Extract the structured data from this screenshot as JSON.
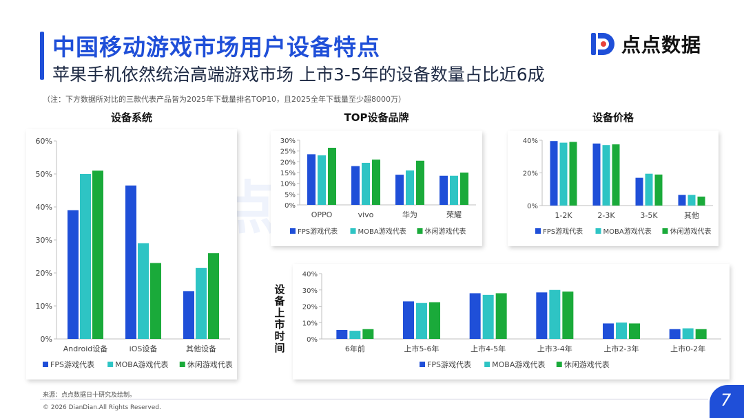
{
  "header": {
    "title": "中国移动游戏市场用户设备特点",
    "subtitle": "苹果手机依然统治高端游戏市场 上市3-5年的设备数量占比近6成",
    "note": "（注：下方数据所对比的三款代表产品皆为2025年下载量排名TOP10，且2025全年下载量至少超8000万）",
    "logo_text": "点点数据",
    "watermark": "点点数据"
  },
  "footer": {
    "source": "来源：点点数据日十研究及绘制。",
    "copyright": "© 2026 DianDian.All Rights Reserved.",
    "page_number": "7"
  },
  "colors": {
    "fps": "#1f4fd8",
    "moba": "#2ec4c4",
    "casual": "#1aaa3a",
    "axis": "#bfbfbf",
    "text": "#444444"
  },
  "legend": [
    "FPS游戏代表",
    "MOBA游戏代表",
    "休闲游戏代表"
  ],
  "chart_data": [
    {
      "id": "os",
      "type": "bar",
      "title": "设备系统",
      "categories": [
        "Android设备",
        "iOS设备",
        "其他设备"
      ],
      "ylim": [
        0,
        60
      ],
      "yticks": [
        "0%",
        "10%",
        "20%",
        "30%",
        "40%",
        "50%",
        "60%"
      ],
      "series": [
        {
          "name": "FPS游戏代表",
          "values": [
            39,
            46.5,
            14.5
          ]
        },
        {
          "name": "MOBA游戏代表",
          "values": [
            50,
            29,
            21.5
          ]
        },
        {
          "name": "休闲游戏代表",
          "values": [
            51,
            23,
            26
          ]
        }
      ]
    },
    {
      "id": "brand",
      "type": "bar",
      "title": "TOP设备品牌",
      "categories": [
        "OPPO",
        "vivo",
        "华为",
        "荣耀"
      ],
      "ylim": [
        0,
        30
      ],
      "yticks": [
        "0%",
        "5%",
        "10%",
        "15%",
        "20%",
        "25%",
        "30%"
      ],
      "series": [
        {
          "name": "FPS游戏代表",
          "values": [
            23.5,
            18,
            14,
            13.5
          ]
        },
        {
          "name": "MOBA游戏代表",
          "values": [
            23,
            19.5,
            16,
            13.5
          ]
        },
        {
          "name": "休闲游戏代表",
          "values": [
            26.5,
            21,
            20.5,
            15
          ]
        }
      ]
    },
    {
      "id": "price",
      "type": "bar",
      "title": "设备价格",
      "categories": [
        "1-2K",
        "2-3K",
        "3-5K",
        "其他"
      ],
      "ylim": [
        0,
        40
      ],
      "yticks": [
        "0%",
        "20%",
        "40%"
      ],
      "series": [
        {
          "name": "FPS游戏代表",
          "values": [
            39.5,
            38,
            17,
            6.5
          ]
        },
        {
          "name": "MOBA游戏代表",
          "values": [
            38.5,
            37,
            19.5,
            6.5
          ]
        },
        {
          "name": "休闲游戏代表",
          "values": [
            39,
            37.5,
            19,
            5.5
          ]
        }
      ]
    },
    {
      "id": "age",
      "type": "bar",
      "title": "设备上市时间",
      "categories": [
        "6年前",
        "上市5-6年",
        "上市4-5年",
        "上市3-4年",
        "上市2-3年",
        "上市0-2年"
      ],
      "ylim": [
        0,
        40
      ],
      "yticks": [
        "0%",
        "10%",
        "20%",
        "30%",
        "40%"
      ],
      "series": [
        {
          "name": "FPS游戏代表",
          "values": [
            5.5,
            23,
            28,
            28.5,
            9.5,
            6
          ]
        },
        {
          "name": "MOBA游戏代表",
          "values": [
            5,
            22,
            27,
            30,
            10,
            6.5
          ]
        },
        {
          "name": "休闲游戏代表",
          "values": [
            6,
            22.5,
            28,
            29,
            9.5,
            6
          ]
        }
      ]
    }
  ]
}
